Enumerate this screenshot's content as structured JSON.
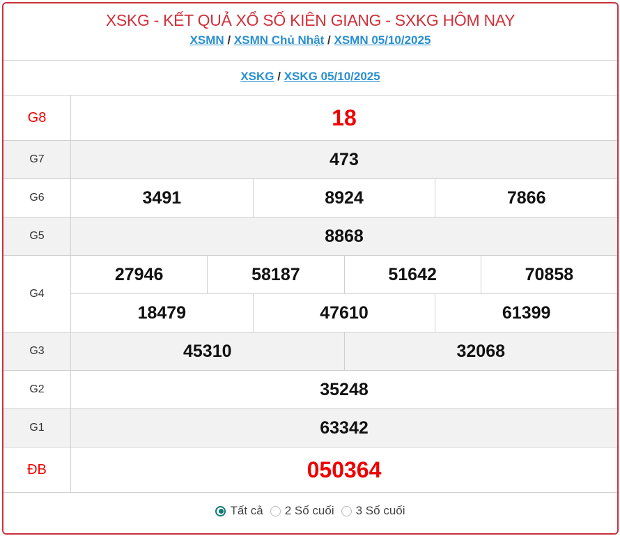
{
  "header": {
    "title": "XSKG - KẾT QUẢ XỔ SỐ KIÊN GIANG - SXKG HÔM NAY",
    "breadcrumb": [
      "XSMN",
      "XSMN Chủ Nhật",
      "XSMN 05/10/2025"
    ],
    "sub_breadcrumb": [
      "XSKG",
      "XSKG 05/10/2025"
    ],
    "separator": "/"
  },
  "prizes": [
    {
      "label": "G8",
      "lines": [
        [
          "18"
        ]
      ]
    },
    {
      "label": "G7",
      "lines": [
        [
          "473"
        ]
      ]
    },
    {
      "label": "G6",
      "lines": [
        [
          "3491",
          "8924",
          "7866"
        ]
      ]
    },
    {
      "label": "G5",
      "lines": [
        [
          "8868"
        ]
      ]
    },
    {
      "label": "G4",
      "lines": [
        [
          "27946",
          "58187",
          "51642",
          "70858"
        ],
        [
          "18479",
          "47610",
          "61399"
        ]
      ]
    },
    {
      "label": "G3",
      "lines": [
        [
          "45310",
          "32068"
        ]
      ]
    },
    {
      "label": "G2",
      "lines": [
        [
          "35248"
        ]
      ]
    },
    {
      "label": "G1",
      "lines": [
        [
          "63342"
        ]
      ]
    },
    {
      "label": "ĐB",
      "lines": [
        [
          "050364"
        ]
      ]
    }
  ],
  "filter": {
    "options": [
      "Tất cả",
      "2 Số cuối",
      "3 Số cuối"
    ],
    "selected": "Tất cả"
  },
  "colors": {
    "accent": "#c8323c",
    "link": "#2a8fcf",
    "prize_red": "#ee0000",
    "radio": "#0f7a78"
  }
}
